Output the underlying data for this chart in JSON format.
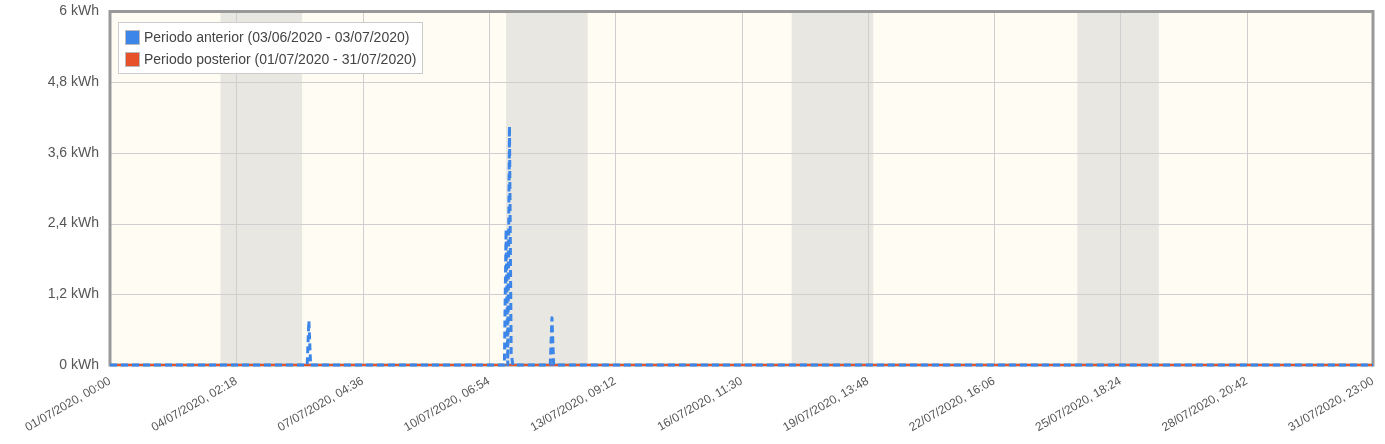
{
  "chart_data": {
    "type": "line",
    "xlim": [
      "2020-07-01T00:00",
      "2020-07-31T23:00"
    ],
    "xticks": [
      {
        "value": "2020-07-01T00:00",
        "label": "01/07/2020, 00:00"
      },
      {
        "value": "2020-07-04T02:18",
        "label": "04/07/2020, 02:18"
      },
      {
        "value": "2020-07-07T04:36",
        "label": "07/07/2020, 04:36"
      },
      {
        "value": "2020-07-10T06:54",
        "label": "10/07/2020, 06:54"
      },
      {
        "value": "2020-07-13T09:12",
        "label": "13/07/2020, 09:12"
      },
      {
        "value": "2020-07-16T11:30",
        "label": "16/07/2020, 11:30"
      },
      {
        "value": "2020-07-19T13:48",
        "label": "19/07/2020, 13:48"
      },
      {
        "value": "2020-07-22T16:06",
        "label": "22/07/2020, 16:06"
      },
      {
        "value": "2020-07-25T18:24",
        "label": "25/07/2020, 18:24"
      },
      {
        "value": "2020-07-28T20:42",
        "label": "28/07/2020, 20:42"
      },
      {
        "value": "2020-07-31T23:00",
        "label": "31/07/2020, 23:00"
      }
    ],
    "ylim": [
      0,
      6
    ],
    "yticks": [
      {
        "value": 0,
        "label": "0 kWh"
      },
      {
        "value": 1.2,
        "label": "1,2 kWh"
      },
      {
        "value": 2.4,
        "label": "2,4 kWh"
      },
      {
        "value": 3.6,
        "label": "3,6 kWh"
      },
      {
        "value": 4.8,
        "label": "4,8 kWh"
      },
      {
        "value": 6,
        "label": "6 kWh"
      }
    ],
    "grid": true,
    "legend": "top left",
    "marker": "none",
    "bands": [
      {
        "axis": "x",
        "from": "2020-07-03T17:00",
        "to": "2020-07-05T17:00",
        "color": "#e8e7e2"
      },
      {
        "axis": "x",
        "from": "2020-07-10T17:00",
        "to": "2020-07-12T17:00",
        "color": "#e8e7e2"
      },
      {
        "axis": "x",
        "from": "2020-07-17T17:00",
        "to": "2020-07-19T17:00",
        "color": "#e8e7e2"
      },
      {
        "axis": "x",
        "from": "2020-07-24T17:00",
        "to": "2020-07-26T17:00",
        "color": "#e8e7e2"
      }
    ],
    "series": [
      {
        "name": "Periodo anterior (03/06/2020 - 03/07/2020)",
        "color": "#3b86e8",
        "line_style": "dashed",
        "x": [
          "2020-07-01T00:00",
          "2020-07-05T20:00",
          "2020-07-05T21:00",
          "2020-07-05T22:00",
          "2020-07-10T16:00",
          "2020-07-10T17:00",
          "2020-07-10T18:00",
          "2020-07-10T19:00",
          "2020-07-10T20:00",
          "2020-07-10T21:00",
          "2020-07-11T19:00",
          "2020-07-11T20:00",
          "2020-07-11T21:00",
          "2020-07-31T23:00"
        ],
        "values": [
          0,
          0,
          0.75,
          0,
          0,
          2.3,
          0,
          4.05,
          0.2,
          0,
          0,
          0.8,
          0,
          0
        ]
      },
      {
        "name": "Periodo posterior (01/07/2020 - 31/07/2020)",
        "color": "#e8522a",
        "line_style": "solid",
        "x": [
          "2020-07-01T00:00",
          "2020-07-31T23:00"
        ],
        "values": [
          0,
          0
        ]
      }
    ]
  }
}
